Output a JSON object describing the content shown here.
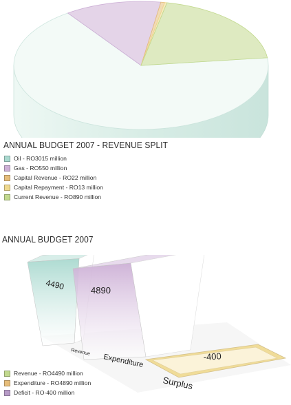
{
  "colors": {
    "oil": "#a9d9cf",
    "gas": "#cdb0d6",
    "capital_revenue": "#e6bd7a",
    "capital_repayment": "#efd98e",
    "current_revenue": "#c2d98e",
    "deficit": "#b79bc7",
    "pie_face": "#f4fbf8",
    "pie_side": "#e1f1ec"
  },
  "chart_data": [
    {
      "type": "pie",
      "title": "ANNUAL BUDGET 2007 - REVENUE SPLIT",
      "units": "RO million",
      "slices": [
        {
          "label": "Oil - RO3015 million",
          "name": "Oil",
          "value": 3015,
          "color": "#a9d9cf"
        },
        {
          "label": "Gas - RO550 million",
          "name": "Gas",
          "value": 550,
          "color": "#cdb0d6"
        },
        {
          "label": "Capital Revenue - RO22 million",
          "name": "Capital Revenue",
          "value": 22,
          "color": "#e6bd7a"
        },
        {
          "label": "Capital Repayment - RO13 million",
          "name": "Capital Repayment",
          "value": 13,
          "color": "#efd98e"
        },
        {
          "label": "Current Revenue - RO890 million",
          "name": "Current Revenue",
          "value": 890,
          "color": "#c2d98e"
        }
      ],
      "legend_position": "bottom-left",
      "style": "3d"
    },
    {
      "type": "bar",
      "title": "ANNUAL BUDGET 2007",
      "units": "RO million",
      "categories": [
        "Revenue",
        "Expenditure",
        "Surplus"
      ],
      "values": [
        4490,
        4890,
        -400
      ],
      "data_labels": [
        "4490",
        "4890",
        "-400"
      ],
      "colors": [
        "#a9d9cf",
        "#cdb0d6",
        "#efd98e"
      ],
      "legend": [
        {
          "label": "Revenue - RO4490 million",
          "color": "#c2d98e"
        },
        {
          "label": "Expenditure - RO4890 million",
          "color": "#e6bd7a"
        },
        {
          "label": "Deficit - RO-400 million",
          "color": "#b79bc7"
        }
      ],
      "legend_position": "bottom-left",
      "style": "3d"
    }
  ]
}
